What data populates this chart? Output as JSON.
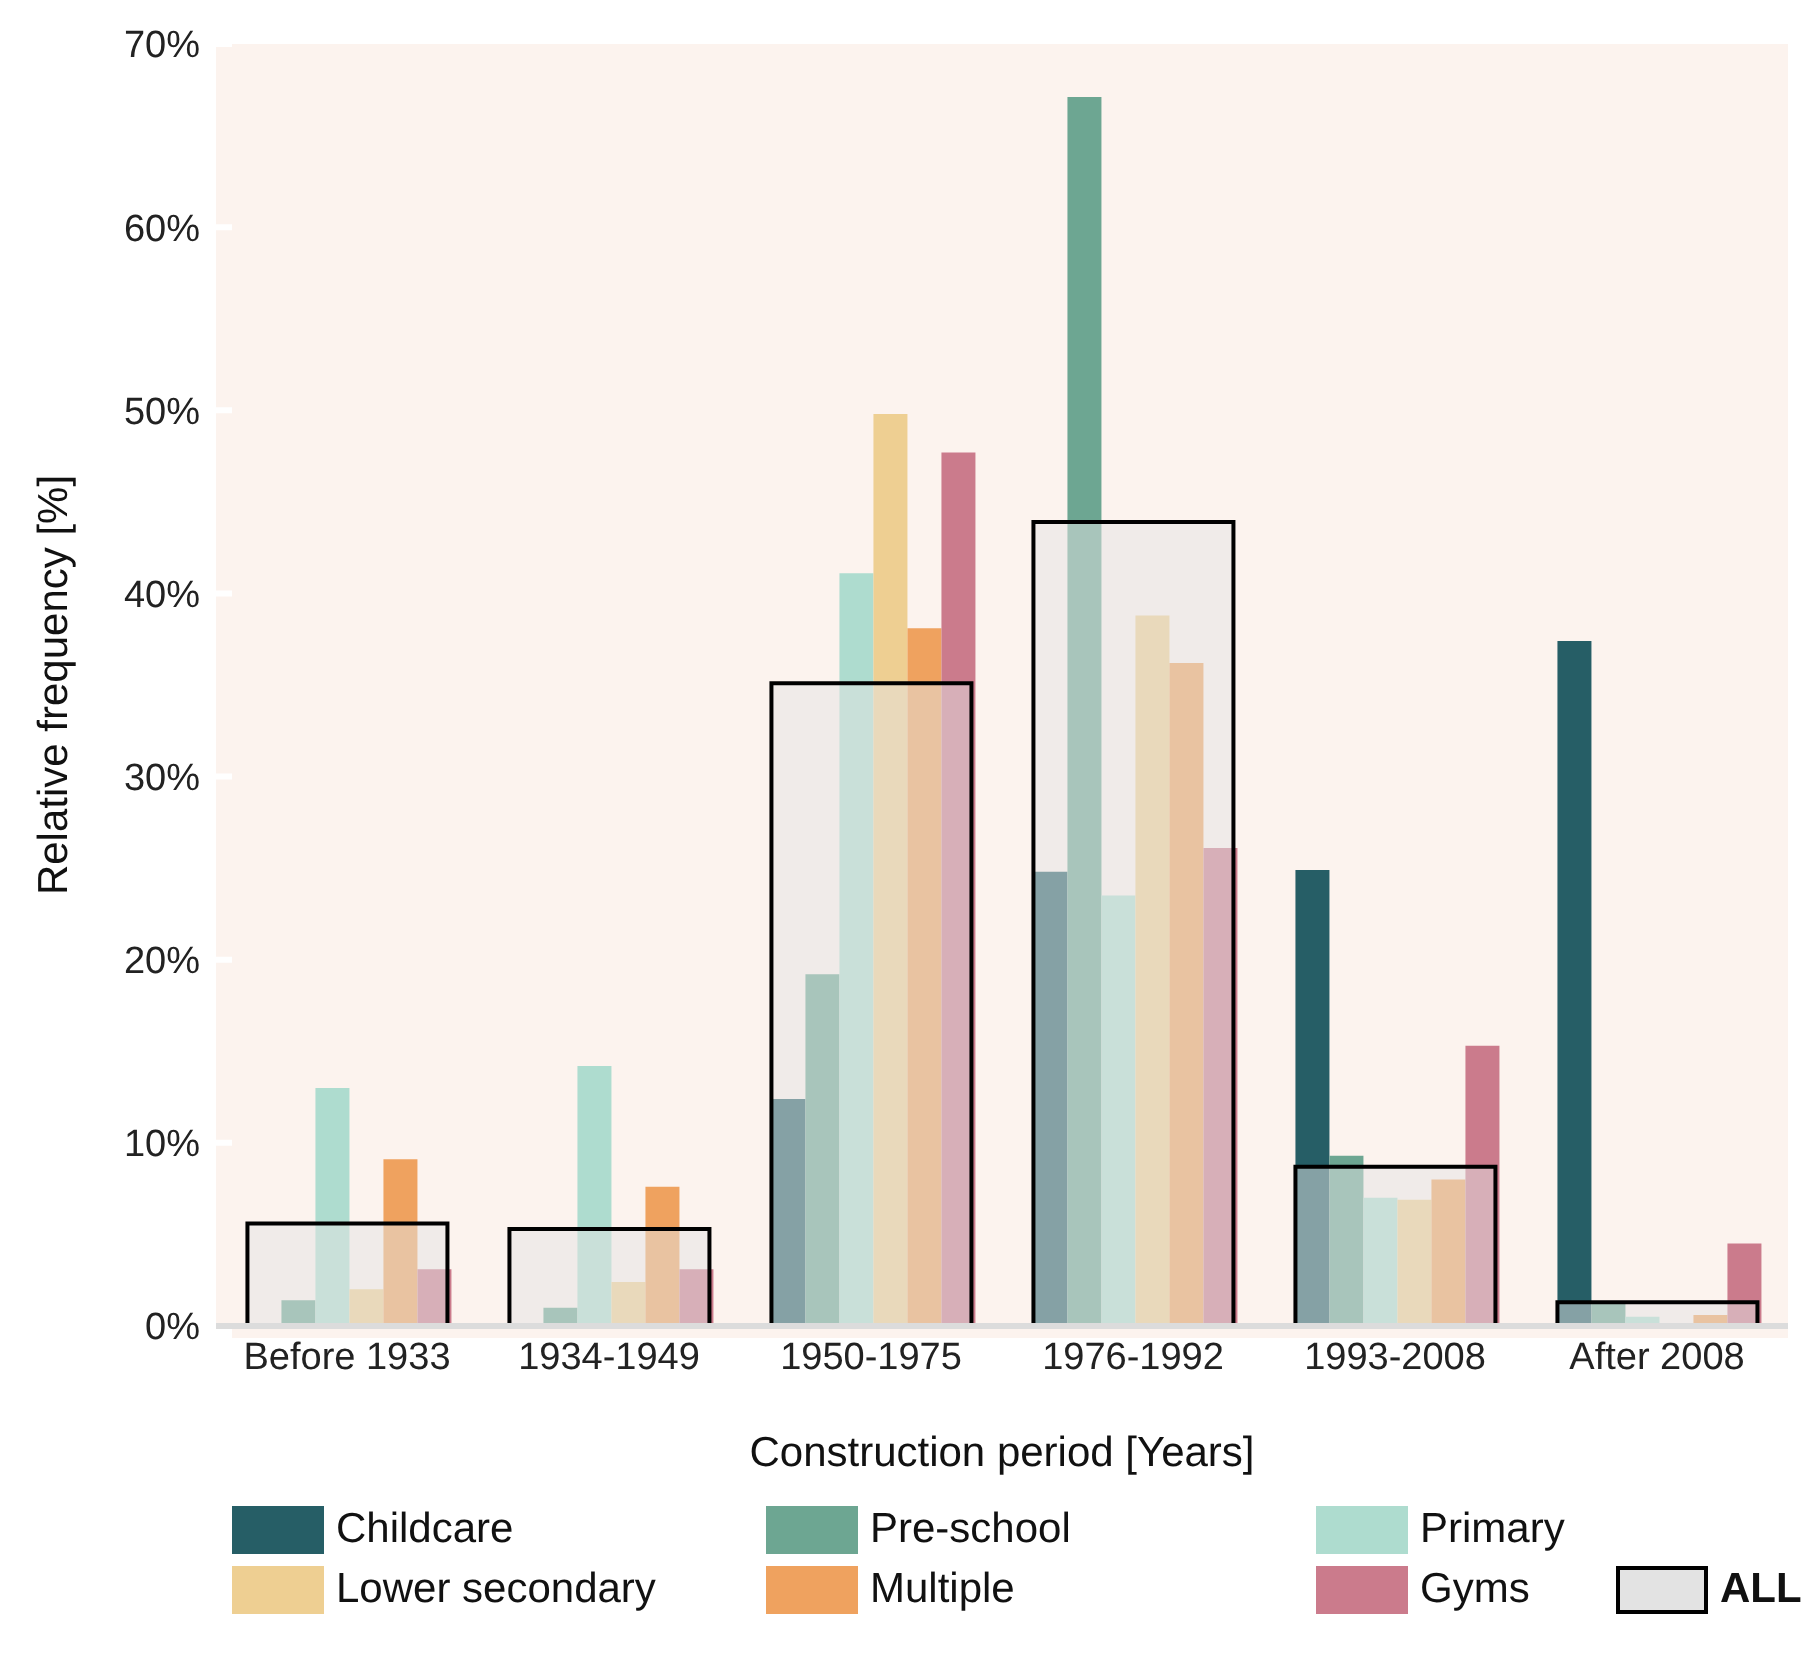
{
  "chart_data": {
    "type": "bar",
    "xlabel": "Construction period [Years]",
    "ylabel": "Relative frequency [%]",
    "categories": [
      "Before 1933",
      "1934-1949",
      "1950-1975",
      "1976-1992",
      "1993-2008",
      "After 2008"
    ],
    "series": [
      {
        "name": "Childcare",
        "color": "#265e66",
        "values": [
          0,
          0,
          12.4,
          24.8,
          24.9,
          37.4
        ]
      },
      {
        "name": "Pre-school",
        "color": "#6da692",
        "values": [
          1.4,
          1.0,
          19.2,
          67.1,
          9.3,
          1.2
        ]
      },
      {
        "name": "Primary",
        "color": "#aedccf",
        "values": [
          13.0,
          14.2,
          41.1,
          23.5,
          7.0,
          0.5
        ]
      },
      {
        "name": "Lower secondary",
        "color": "#eecf92",
        "values": [
          2.0,
          2.4,
          49.8,
          38.8,
          6.9,
          0
        ]
      },
      {
        "name": "Multiple",
        "color": "#efa25f",
        "values": [
          9.1,
          7.6,
          38.1,
          36.2,
          8.0,
          0.6
        ]
      },
      {
        "name": "Gyms",
        "color": "#cb7b8c",
        "values": [
          3.1,
          3.1,
          47.7,
          26.1,
          15.3,
          4.5
        ]
      },
      {
        "name": "ALL",
        "color": "#e3e3e3",
        "values": [
          5.6,
          5.3,
          35.1,
          43.9,
          8.7,
          1.3
        ]
      }
    ],
    "ylim": [
      0,
      70
    ],
    "yticks": [
      {
        "value": 0,
        "label": "0%"
      },
      {
        "value": 10,
        "label": "10%"
      },
      {
        "value": 20,
        "label": "20%"
      },
      {
        "value": 30,
        "label": "30%"
      },
      {
        "value": 40,
        "label": "40%"
      },
      {
        "value": 50,
        "label": "50%"
      },
      {
        "value": 60,
        "label": "60%"
      },
      {
        "value": 70,
        "label": "70%"
      }
    ],
    "grid": "y",
    "legend": "bottom"
  }
}
